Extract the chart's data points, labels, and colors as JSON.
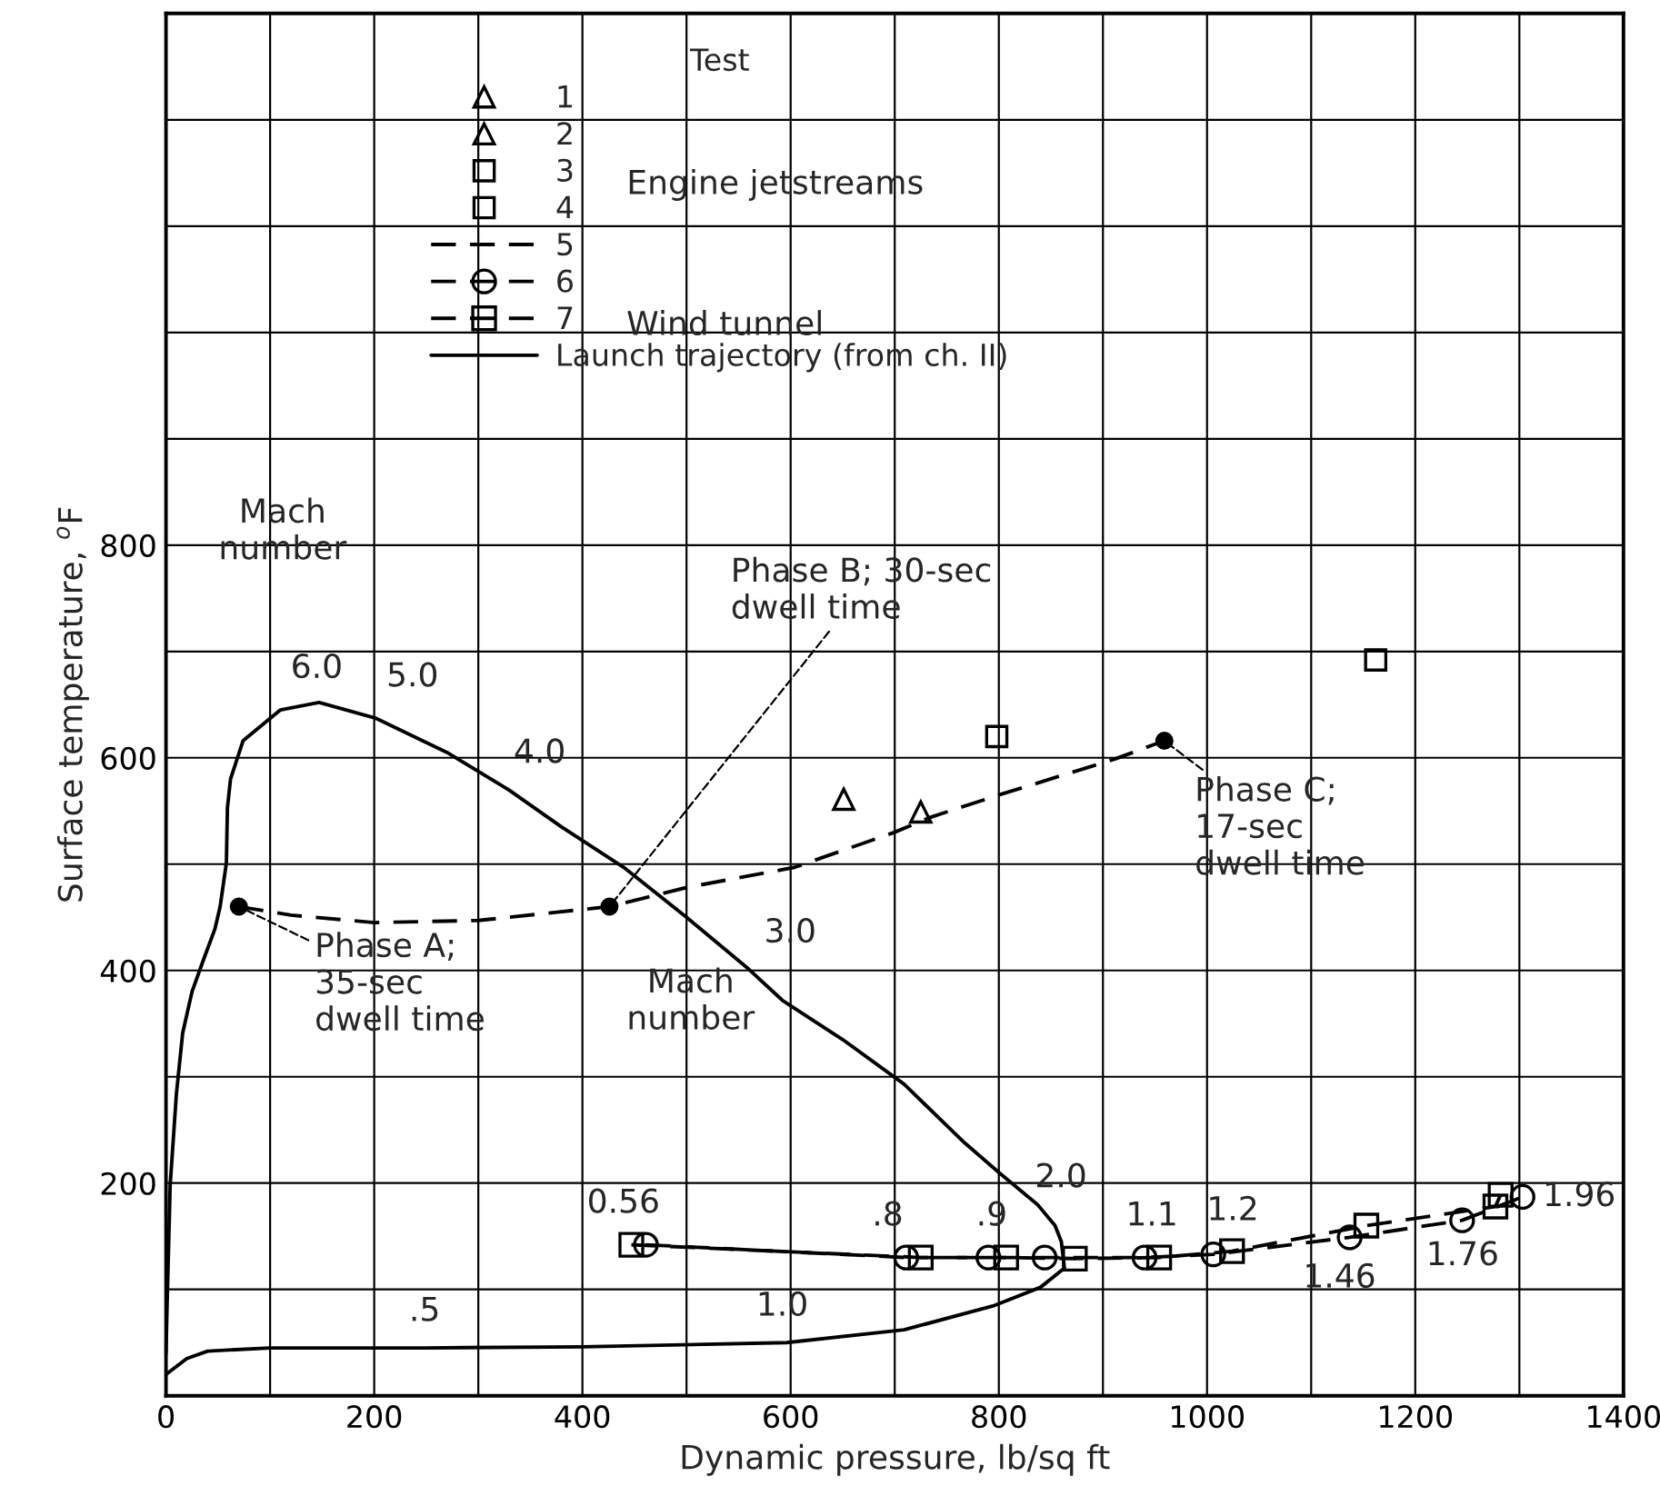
{
  "chart_data": {
    "type": "line",
    "xlabel": "Dynamic pressure, lb/sq ft",
    "ylabel": "Surface temperature, $^{o}$F",
    "legend_title": "Test",
    "legend": "top",
    "grid": true,
    "xlim": [
      0,
      1400
    ],
    "ylim": [
      0,
      1300
    ],
    "xticks": [
      0,
      {
        "value": 100,
        "label": null
      },
      200,
      {
        "value": 300,
        "label": null
      },
      400,
      {
        "value": 500,
        "label": null
      },
      600,
      {
        "value": 700,
        "label": null
      },
      800,
      {
        "value": 900,
        "label": null
      },
      1000,
      {
        "value": 1100,
        "label": null
      },
      1200,
      {
        "value": 1300,
        "label": null
      },
      1400
    ],
    "yticks": [
      {
        "value": 100,
        "label": null
      },
      200,
      {
        "value": 300,
        "label": null
      },
      400,
      {
        "value": 500,
        "label": null
      },
      600,
      {
        "value": 700,
        "label": null
      },
      800,
      {
        "value": 900,
        "label": null
      },
      {
        "value": 1000,
        "label": null
      },
      {
        "value": 1100,
        "label": null
      },
      {
        "value": 1200,
        "label": null
      },
      {
        "value": 1300,
        "label": null
      }
    ],
    "series": [
      {
        "name": "1",
        "type": "scatter",
        "marker": "triangle",
        "color": "#000000",
        "x": [
          725
        ],
        "values": [
          549
        ]
      },
      {
        "name": "2",
        "type": "scatter",
        "marker": "triangle",
        "color": "#000000",
        "x": [
          651
        ],
        "values": [
          561
        ]
      },
      {
        "name": "3",
        "type": "scatter",
        "marker": "square",
        "color": "#000000",
        "x": [
          798
        ],
        "values": [
          620
        ]
      },
      {
        "name": "4",
        "type": "scatter",
        "marker": "square",
        "color": "#000000",
        "x": [
          1162
        ],
        "values": [
          692
        ]
      },
      {
        "name": "5",
        "line_style": "dashed",
        "marker": "none",
        "color": "#000000",
        "x": [
          70,
          120,
          200,
          300,
          426,
          500,
          604,
          700,
          734,
          800,
          912,
          959
        ],
        "values": [
          460,
          452,
          445,
          447,
          460,
          478,
          497,
          530,
          544,
          565,
          599,
          616
        ]
      },
      {
        "type": "scatter",
        "marker": "dot",
        "color": "#000000",
        "x": [
          70,
          426,
          959
        ],
        "values": [
          460,
          460,
          616
        ]
      },
      {
        "name": "6",
        "line_style": "dashed",
        "marker": "circle",
        "color": "#000000",
        "x": [
          461,
          711,
          790,
          844,
          940,
          1006,
          1137,
          1245,
          1303
        ],
        "values": [
          142,
          130,
          130,
          130,
          130,
          133,
          149,
          165,
          187
        ]
      },
      {
        "name": "7",
        "line_style": "dashed",
        "marker": "square",
        "color": "#000000",
        "x": [
          447,
          725,
          807,
          873,
          954,
          1024,
          1153,
          1277,
          1282
        ],
        "values": [
          142,
          130,
          130,
          129,
          130,
          136,
          160,
          178,
          189
        ]
      },
      {
        "name": "Launch trajectory (from ch. II)",
        "line_style": "solid",
        "marker": "none",
        "color": "#000000",
        "x": [
          0,
          20,
          40,
          100,
          250,
          400,
          596,
          709,
          796,
          840,
          863,
          860,
          854,
          837,
          800,
          767,
          709,
          650,
          592,
          560,
          500,
          441,
          380,
          329,
          270,
          202,
          147,
          110,
          74,
          62,
          59,
          58,
          52,
          47,
          36,
          25,
          16,
          10,
          4,
          1,
          0
        ],
        "values": [
          20,
          35,
          42,
          45,
          45,
          46,
          50,
          62,
          85,
          102,
          120,
          145,
          160,
          180,
          210,
          238,
          293,
          335,
          372,
          401,
          450,
          496,
          535,
          570,
          605,
          637,
          652,
          645,
          616,
          580,
          553,
          501,
          460,
          439,
          410,
          380,
          341,
          284,
          198,
          83,
          40
        ]
      }
    ],
    "annotations": [
      "Mach\nnumber",
      "Mach\nnumber",
      "Engine jetstreams",
      "Wind tunnel",
      {
        "text": "6.0",
        "x": 110,
        "y": 645
      },
      {
        "text": "5.0",
        "x": 202,
        "y": 637
      },
      {
        "text": "4.0",
        "x": 329,
        "y": 570
      },
      {
        "text": "3.0",
        "x": 560,
        "y": 401
      },
      {
        "text": "2.0",
        "x": 854,
        "y": 166
      },
      {
        "text": ".5",
        "x": 248,
        "y": 45
      },
      {
        "text": "1.0",
        "x": 596,
        "y": 50
      },
      {
        "text": "0.56",
        "x": 454,
        "y": 142
      },
      {
        "text": ".8",
        "x": 718,
        "y": 130
      },
      {
        "text": ".9",
        "x": 798,
        "y": 130
      },
      {
        "text": "1.1",
        "x": 947,
        "y": 130
      },
      {
        "text": "1.2",
        "x": 1015,
        "y": 135
      },
      {
        "text": "1.46",
        "x": 1137,
        "y": 149
      },
      {
        "text": "1.76",
        "x": 1260,
        "y": 170
      },
      {
        "text": "1.96",
        "x": 1303,
        "y": 187
      },
      {
        "text": "Phase A;\n35-sec\ndwell time",
        "x": 70,
        "y": 460
      },
      {
        "text": "Phase B; 30-sec\ndwell time",
        "x": 426,
        "y": 460
      },
      {
        "text": "Phase C;\n17-sec\ndwell time",
        "x": 959,
        "y": 616
      }
    ]
  }
}
